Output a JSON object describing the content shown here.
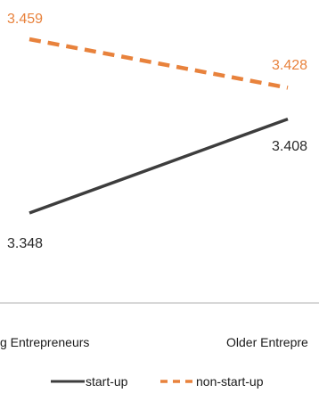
{
  "chart_data": {
    "type": "line",
    "categories": [
      "Young Entrepreneurs",
      "Older Entrepreneurs"
    ],
    "visible_category_text": [
      "g Entrepreneurs",
      "Older Entrepre"
    ],
    "series": [
      {
        "name": "start-up",
        "values": [
          3.348,
          3.408
        ],
        "color": "#3d3d3d",
        "dash": "solid"
      },
      {
        "name": "non-start-up",
        "values": [
          3.459,
          3.428
        ],
        "color": "#e8823c",
        "dash": "dashed"
      }
    ],
    "data_labels": [
      {
        "series": "start-up",
        "category": "Young Entrepreneurs",
        "text": "3.348"
      },
      {
        "series": "start-up",
        "category": "Older Entrepreneurs",
        "text": "3.408"
      },
      {
        "series": "non-start-up",
        "category": "Young Entrepreneurs",
        "text": "3.459"
      },
      {
        "series": "non-start-up",
        "category": "Older Entrepreneurs",
        "text": "3.428"
      }
    ],
    "ylim": [
      3.33,
      3.47
    ],
    "grid": false,
    "legend_position": "bottom",
    "title": "",
    "xlabel": "",
    "ylabel": ""
  }
}
